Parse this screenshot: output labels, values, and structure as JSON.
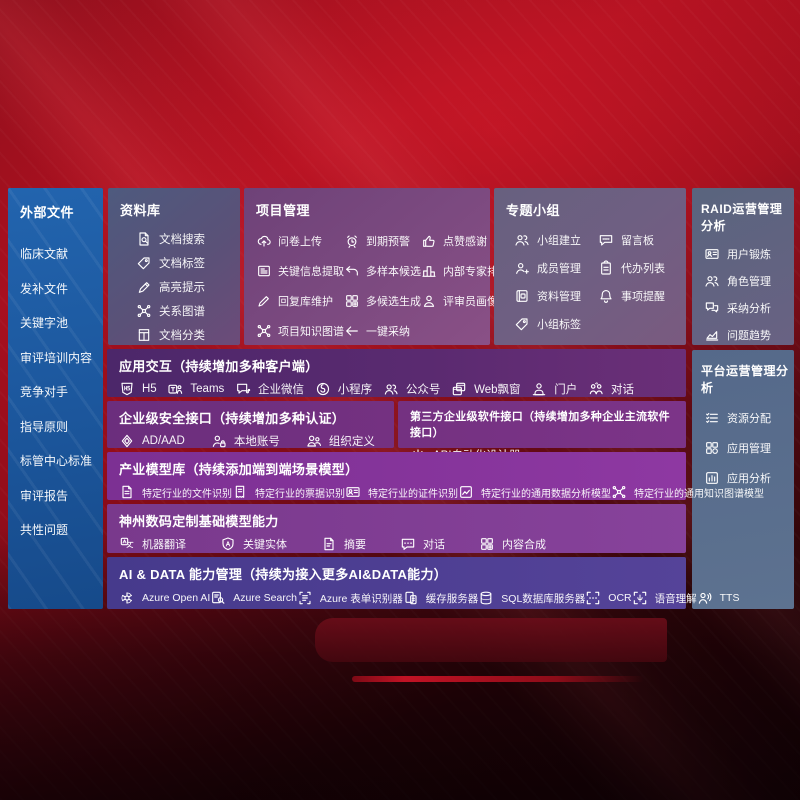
{
  "colors": {
    "background_red": "#a8101f",
    "background_dark": "#1d0307",
    "sidebar_blue": "#1d5ca6",
    "panel_slate": "#565a7c",
    "panel_mauve": "#7c4a80",
    "panel_gray_purple": "#6f5f82",
    "right_panel_steel": "#5d7290",
    "band_violet": "#5a2a70",
    "band_purple": "#743181",
    "band_magenta": "#85349a",
    "band_plum": "#803d93",
    "band_indigo": "#4d3d92",
    "text": "#ffffff"
  },
  "sidebar": {
    "title": "外部文件",
    "items": [
      "临床文献",
      "发补文件",
      "关键字池",
      "审评培训内容",
      "竞争对手",
      "指导原则",
      "标管中心标准",
      "审评报告",
      "共性问题"
    ]
  },
  "panels": {
    "repo": {
      "title": "资料库",
      "items": [
        {
          "icon": "doc-search",
          "label": "文档搜索"
        },
        {
          "icon": "tag",
          "label": "文档标签"
        },
        {
          "icon": "highlight",
          "label": "高亮提示"
        },
        {
          "icon": "graph",
          "label": "关系图谱"
        },
        {
          "icon": "doc-category",
          "label": "文档分类"
        }
      ]
    },
    "project": {
      "title": "项目管理",
      "items": [
        {
          "icon": "cloud-upload",
          "label": "问卷上传"
        },
        {
          "icon": "alarm",
          "label": "到期预警"
        },
        {
          "icon": "thumb-up",
          "label": "点赞感谢"
        },
        {
          "icon": "doc-extract",
          "label": "关键信息提取"
        },
        {
          "icon": "undo-arrow",
          "label": "多样本候选"
        },
        {
          "icon": "podium",
          "label": "内部专家排名"
        },
        {
          "icon": "pen",
          "label": "回复库维护"
        },
        {
          "icon": "grid-gen",
          "label": "多候选生成"
        },
        {
          "icon": "person",
          "label": "评审员画像"
        },
        {
          "icon": "graph",
          "label": "项目知识图谱"
        },
        {
          "icon": "adopt-arrow",
          "label": "一键采纳"
        }
      ]
    },
    "group": {
      "title": "专题小组",
      "items": [
        {
          "icon": "people",
          "label": "小组建立"
        },
        {
          "icon": "bbs",
          "label": "留言板"
        },
        {
          "icon": "person-plus",
          "label": "成员管理"
        },
        {
          "icon": "clipboard",
          "label": "代办列表"
        },
        {
          "icon": "album",
          "label": "资料管理"
        },
        {
          "icon": "bell",
          "label": "事项提醒"
        },
        {
          "icon": "tag",
          "label": "小组标签"
        }
      ]
    },
    "raid": {
      "title": "RAID运营管理分析",
      "items": [
        {
          "icon": "id-card",
          "label": "用户锻炼"
        },
        {
          "icon": "people",
          "label": "角色管理"
        },
        {
          "icon": "chat-qa",
          "label": "采纳分析"
        },
        {
          "icon": "trend",
          "label": "问题趋势"
        }
      ]
    },
    "platform": {
      "title": "平台运营管理分析",
      "items": [
        {
          "icon": "checklist",
          "label": "资源分配"
        },
        {
          "icon": "app-grid",
          "label": "应用管理"
        },
        {
          "icon": "report",
          "label": "应用分析"
        }
      ]
    }
  },
  "bands": {
    "interaction": {
      "title": "应用交互（持续增加多种客户端）",
      "items": [
        {
          "icon": "h5",
          "label": "H5"
        },
        {
          "icon": "teams",
          "label": "Teams"
        },
        {
          "icon": "wecom",
          "label": "企业微信"
        },
        {
          "icon": "miniapp",
          "label": "小程序"
        },
        {
          "icon": "official",
          "label": "公众号"
        },
        {
          "icon": "webwin",
          "label": "Web飘窗"
        },
        {
          "icon": "portal",
          "label": "门户"
        },
        {
          "icon": "dialog",
          "label": "对话"
        }
      ]
    },
    "security": {
      "title": "企业级安全接口（持续增加多种认证）",
      "items": [
        {
          "icon": "shield",
          "label": "AD/AAD"
        },
        {
          "icon": "person-lock",
          "label": "本地账号"
        },
        {
          "icon": "org",
          "label": "组织定义"
        }
      ]
    },
    "thirdparty": {
      "title": "第三方企业级软件接口（持续增加多种企业主流软件接口）",
      "items": [
        {
          "icon": "api-gear",
          "label": "API自动化设计器"
        }
      ]
    },
    "models": {
      "title": "产业模型库（持续添加端到端场景模型）",
      "items": [
        {
          "icon": "doc",
          "label": "特定行业的文件识别"
        },
        {
          "icon": "receipt",
          "label": "特定行业的票据识别"
        },
        {
          "icon": "id-card",
          "label": "特定行业的证件识别"
        },
        {
          "icon": "image-chart",
          "label": "特定行业的通用数据分析模型"
        },
        {
          "icon": "graph",
          "label": "特定行业的通用知识图谱模型"
        }
      ]
    },
    "foundation": {
      "title": "神州数码定制基础模型能力",
      "items": [
        {
          "icon": "translate",
          "label": "机器翻译"
        },
        {
          "icon": "shield-a",
          "label": "关键实体"
        },
        {
          "icon": "summary",
          "label": "摘要"
        },
        {
          "icon": "chat",
          "label": "对话"
        },
        {
          "icon": "compose",
          "label": "内容合成"
        }
      ]
    },
    "aidata": {
      "title": "AI & DATA 能力管理（持续为接入更多AI&DATA能力）",
      "items": [
        {
          "icon": "openai",
          "label": "Azure Open AI"
        },
        {
          "icon": "search",
          "label": "Azure Search"
        },
        {
          "icon": "form",
          "label": "Azure 表单识别器"
        },
        {
          "icon": "cache",
          "label": "缓存服务器"
        },
        {
          "icon": "db",
          "label": "SQL数据库服务器"
        },
        {
          "icon": "ocr",
          "label": "OCR"
        },
        {
          "icon": "voice",
          "label": "语音理解"
        },
        {
          "icon": "tts",
          "label": "TTS"
        }
      ]
    }
  }
}
